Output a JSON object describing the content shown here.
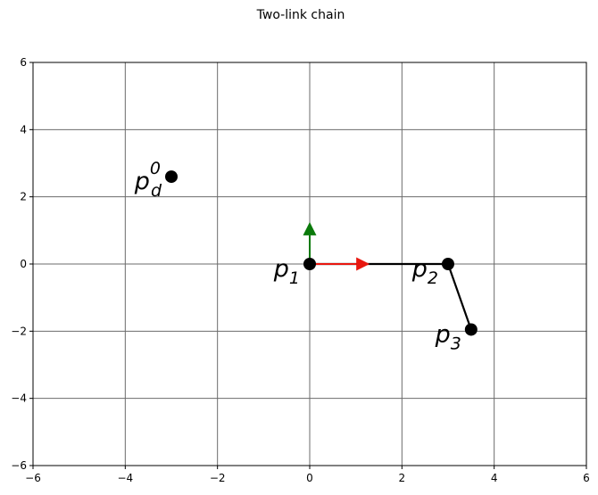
{
  "chart_data": {
    "type": "scatter",
    "title": "Two-link chain",
    "xlabel": "",
    "ylabel": "",
    "xlim": [
      -6,
      6
    ],
    "ylim": [
      -6,
      6
    ],
    "xticks": [
      -6,
      -4,
      -2,
      0,
      2,
      4,
      6
    ],
    "yticks": [
      -6,
      -4,
      -2,
      0,
      2,
      4,
      6
    ],
    "xtick_labels": [
      "−6",
      "−4",
      "−2",
      "0",
      "2",
      "4",
      "6"
    ],
    "ytick_labels": [
      "−6",
      "−4",
      "−2",
      "0",
      "2",
      "4",
      "6"
    ],
    "grid": true,
    "points": [
      {
        "id": "p1",
        "base": "p",
        "sub": "1",
        "sup": "",
        "x": 0,
        "y": 0,
        "label_side": "left"
      },
      {
        "id": "p2",
        "base": "p",
        "sub": "2",
        "sup": "",
        "x": 3.0,
        "y": 0,
        "label_side": "left"
      },
      {
        "id": "p3",
        "base": "p",
        "sub": "3",
        "sup": "",
        "x": 3.5,
        "y": -1.95,
        "label_side": "left"
      },
      {
        "id": "pd0",
        "base": "p",
        "sub": "d",
        "sup": "0",
        "x": -3.0,
        "y": 2.6,
        "label_side": "left"
      }
    ],
    "links": [
      {
        "from": [
          0,
          0
        ],
        "to": [
          3.0,
          0
        ],
        "color": "#000000"
      },
      {
        "from": [
          3.0,
          0
        ],
        "to": [
          3.5,
          -1.95
        ],
        "color": "#000000"
      }
    ],
    "frame_arrows": [
      {
        "name": "x-axis-arrow",
        "from": [
          0,
          0
        ],
        "to": [
          1.3,
          0
        ],
        "color": "#e8170f"
      },
      {
        "name": "y-axis-arrow",
        "from": [
          0,
          0
        ],
        "to": [
          0,
          1.25
        ],
        "color": "#0b7a0b"
      }
    ],
    "colors": {
      "grid": "#6b6b6b",
      "marker": "#000000",
      "x_arrow": "#e8170f",
      "y_arrow": "#0b7a0b"
    }
  }
}
